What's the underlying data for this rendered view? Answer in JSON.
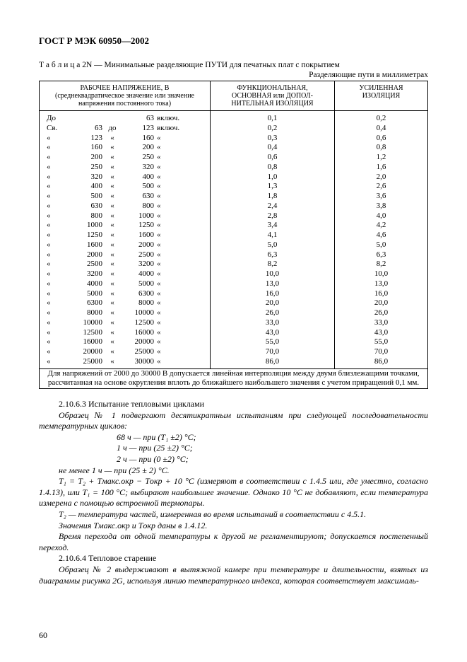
{
  "header": "ГОСТ Р МЭК 60950—2002",
  "tableCaption": "Т а б л и ц а  2N — Минимальные разделяющие ПУТИ для печатных плат с покрытием",
  "tableRightCaption": "Разделяющие пути в миллиметрах",
  "columns": {
    "c1a": "РАБОЧЕЕ  НАПРЯЖЕНИЕ,  В",
    "c1b": "(среднеквадратическое значение или значение напряжения постоянного тока)",
    "c2a": "ФУНКЦИОНАЛЬНАЯ,",
    "c2b": "ОСНОВНАЯ или ДОПОЛ-",
    "c2c": "НИТЕЛЬНАЯ  ИЗОЛЯЦИЯ",
    "c3a": "УСИЛЕННАЯ",
    "c3b": "ИЗОЛЯЦИЯ"
  },
  "rows": [
    {
      "pre": "До",
      "from": "",
      "mid": "",
      "to": "63",
      "suf": "включ.",
      "v2": "0,1",
      "v3": "0,2"
    },
    {
      "pre": "Св.",
      "from": "63",
      "mid": "до",
      "to": "123",
      "suf": "включ.",
      "v2": "0,2",
      "v3": "0,4"
    },
    {
      "pre": "«",
      "from": "123",
      "mid": "«",
      "to": "160",
      "suf": "«",
      "v2": "0,3",
      "v3": "0,6"
    },
    {
      "pre": "«",
      "from": "160",
      "mid": "«",
      "to": "200",
      "suf": "«",
      "v2": "0,4",
      "v3": "0,8"
    },
    {
      "pre": "«",
      "from": "200",
      "mid": "«",
      "to": "250",
      "suf": "«",
      "v2": "0,6",
      "v3": "1,2"
    },
    {
      "pre": "«",
      "from": "250",
      "mid": "«",
      "to": "320",
      "suf": "«",
      "v2": "0,8",
      "v3": "1,6"
    },
    {
      "pre": "«",
      "from": "320",
      "mid": "«",
      "to": "400",
      "suf": "«",
      "v2": "1,0",
      "v3": "2,0"
    },
    {
      "pre": "«",
      "from": "400",
      "mid": "«",
      "to": "500",
      "suf": "«",
      "v2": "1,3",
      "v3": "2,6"
    },
    {
      "pre": "«",
      "from": "500",
      "mid": "«",
      "to": "630",
      "suf": "«",
      "v2": "1,8",
      "v3": "3,6"
    },
    {
      "pre": "«",
      "from": "630",
      "mid": "«",
      "to": "800",
      "suf": "«",
      "v2": "2,4",
      "v3": "3,8"
    },
    {
      "pre": "«",
      "from": "800",
      "mid": "«",
      "to": "1000",
      "suf": "«",
      "v2": "2,8",
      "v3": "4,0"
    },
    {
      "pre": "«",
      "from": "1000",
      "mid": "«",
      "to": "1250",
      "suf": "«",
      "v2": "3,4",
      "v3": "4,2"
    },
    {
      "pre": "«",
      "from": "1250",
      "mid": "«",
      "to": "1600",
      "suf": "«",
      "v2": "4,1",
      "v3": "4,6"
    },
    {
      "pre": "«",
      "from": "1600",
      "mid": "«",
      "to": "2000",
      "suf": "«",
      "v2": "5,0",
      "v3": "5,0"
    },
    {
      "pre": "«",
      "from": "2000",
      "mid": "«",
      "to": "2500",
      "suf": "«",
      "v2": "6,3",
      "v3": "6,3"
    },
    {
      "pre": "«",
      "from": "2500",
      "mid": "«",
      "to": "3200",
      "suf": "«",
      "v2": "8,2",
      "v3": "8,2"
    },
    {
      "pre": "«",
      "from": "3200",
      "mid": "«",
      "to": "4000",
      "suf": "«",
      "v2": "10,0",
      "v3": "10,0"
    },
    {
      "pre": "«",
      "from": "4000",
      "mid": "«",
      "to": "5000",
      "suf": "«",
      "v2": "13,0",
      "v3": "13,0"
    },
    {
      "pre": "«",
      "from": "5000",
      "mid": "«",
      "to": "6300",
      "suf": "«",
      "v2": "16,0",
      "v3": "16,0"
    },
    {
      "pre": "«",
      "from": "6300",
      "mid": "«",
      "to": "8000",
      "suf": "«",
      "v2": "20,0",
      "v3": "20,0"
    },
    {
      "pre": "«",
      "from": "8000",
      "mid": "«",
      "to": "10000",
      "suf": "«",
      "v2": "26,0",
      "v3": "26,0"
    },
    {
      "pre": "«",
      "from": "10000",
      "mid": "«",
      "to": "12500",
      "suf": "«",
      "v2": "33,0",
      "v3": "33,0"
    },
    {
      "pre": "«",
      "from": "12500",
      "mid": "«",
      "to": "16000",
      "suf": "«",
      "v2": "43,0",
      "v3": "43,0"
    },
    {
      "pre": "«",
      "from": "16000",
      "mid": "«",
      "to": "20000",
      "suf": "«",
      "v2": "55,0",
      "v3": "55,0"
    },
    {
      "pre": "«",
      "from": "20000",
      "mid": "«",
      "to": "25000",
      "suf": "«",
      "v2": "70,0",
      "v3": "70,0"
    },
    {
      "pre": "«",
      "from": "25000",
      "mid": "«",
      "to": "30000",
      "suf": "«",
      "v2": "86,0",
      "v3": "86,0"
    }
  ],
  "footnote": "Для напряжений от 2000 до 30000 В допускается линейная интерполяция между двумя близлежащими точками, рассчитанная на основе округления вплоть до ближайшего наибольшего значения с учетом приращений 0,1 мм.",
  "section1": {
    "num": "2.10.6.3 Испытание тепловыми циклами",
    "p1": "Образец № 1 подвергают десятикратным испытаниям при следующей последовательности температурных циклов:",
    "cycles": [
      "68 ч — при (T₁ ±2) °С;",
      "1 ч — при (25 ±2) °С;",
      "2 ч — при (0 ±2) °С;"
    ],
    "p2": "не менее 1 ч — при (25 ± 2) °С.",
    "p3": "T₁ = T₂ + Tмакс.окр − Tокр + 10 °С (измеряют в соответствии с 1.4.5 или, где уместно, согласно 1.4.13), или T₁ = 100 °С; выбирают наибольшее значение. Однако 10 °С не добавляют, если температура измерена с помощью встроенной термопары.",
    "p4": "T₂ — температура частей, измеренная во время испытаний в соответствии с 4.5.1.",
    "p5": "Значения Tмакс.окр и Tокр даны в 1.4.12.",
    "p6": "Время перехода от одной температуры к другой не регламентируют; допускается постепенный переход."
  },
  "section2": {
    "num": "2.10.6.4 Тепловое старение",
    "p1": "Образец № 2 выдерживают в вытяжной камере при температуре и длительности, взятых из диаграммы рисунка 2G, используя линию температурного индекса, которая соответствует максималь-"
  },
  "pageNum": "60"
}
